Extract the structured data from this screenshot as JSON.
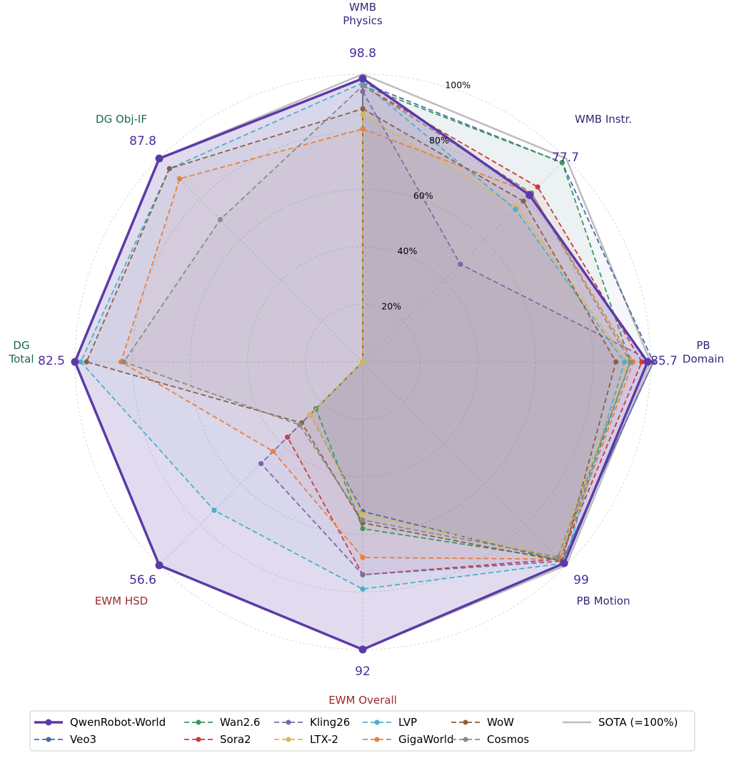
{
  "chart_data": {
    "type": "radar",
    "axes": [
      {
        "label": "WMB\nPhysics",
        "color": "#2d2a78",
        "value_label": "98.8"
      },
      {
        "label": "WMB Instr.",
        "color": "#2d2a78",
        "value_label": "77.7"
      },
      {
        "label": "PB\nDomain",
        "color": "#2d2a78",
        "value_label": "85.7"
      },
      {
        "label": "PB Motion",
        "color": "#2d2a78",
        "value_label": "99"
      },
      {
        "label": "EWM Overall",
        "color": "#9b2a2a",
        "value_label": "92"
      },
      {
        "label": "EWM HSD",
        "color": "#9b2a2a",
        "value_label": "56.6"
      },
      {
        "label": "DG\nTotal",
        "color": "#1a6b4a",
        "value_label": "82.5"
      },
      {
        "label": "DG Obj-IF",
        "color": "#1a6b4a",
        "value_label": "87.8"
      }
    ],
    "radial_ticks": [
      "20%",
      "40%",
      "60%",
      "80%",
      "100%"
    ],
    "radial_tick_values": [
      20,
      40,
      60,
      80,
      100
    ],
    "rmax": 100,
    "grid": true,
    "legend_position": "bottom",
    "series": [
      {
        "name": "QwenRobot-World",
        "color": "#5b3aa8",
        "style": "solid",
        "fill": true,
        "values": [
          98.5,
          82,
          99,
          99,
          100,
          100,
          100,
          100
        ]
      },
      {
        "name": "Veo3",
        "color": "#4a6aa8",
        "style": "dashed",
        "values": [
          97,
          98,
          101,
          98,
          52,
          26,
          0,
          0
        ]
      },
      {
        "name": "Wan2.6",
        "color": "#3a9a5a",
        "style": "dashed",
        "values": [
          96,
          98,
          93,
          97,
          58,
          23,
          0,
          0
        ]
      },
      {
        "name": "Sora2",
        "color": "#cc3a3a",
        "style": "dashed",
        "values": [
          96,
          86,
          97,
          97,
          74,
          37,
          0,
          0
        ]
      },
      {
        "name": "Kling26",
        "color": "#7a6aaa",
        "style": "dashed",
        "values": [
          94,
          48,
          101,
          98,
          74,
          50,
          0,
          0
        ]
      },
      {
        "name": "LTX-2",
        "color": "#d8b84a",
        "style": "dashed",
        "values": [
          86,
          76,
          92,
          96,
          53,
          26,
          0,
          0
        ]
      },
      {
        "name": "LVP",
        "color": "#4ab0c8",
        "style": "dashed",
        "values": [
          97,
          75,
          91,
          99,
          79,
          73,
          98,
          95
        ]
      },
      {
        "name": "GigaWorld",
        "color": "#e8803a",
        "style": "dashed",
        "values": [
          81,
          83,
          94,
          97,
          68,
          44,
          84,
          90
        ]
      },
      {
        "name": "WoW",
        "color": "#8a6040",
        "style": "dashed",
        "values": [
          88,
          79,
          88,
          98,
          56,
          30,
          96,
          95
        ]
      },
      {
        "name": "Cosmos",
        "color": "#8a8a8a",
        "style": "dashed",
        "values": [
          96,
          83,
          93,
          96,
          55,
          31,
          83,
          70
        ]
      },
      {
        "name": "SOTA (=100%)",
        "color": "#bdbdbd",
        "style": "solid",
        "values": [
          100,
          100,
          100,
          100,
          100,
          100,
          100,
          100
        ]
      }
    ]
  }
}
